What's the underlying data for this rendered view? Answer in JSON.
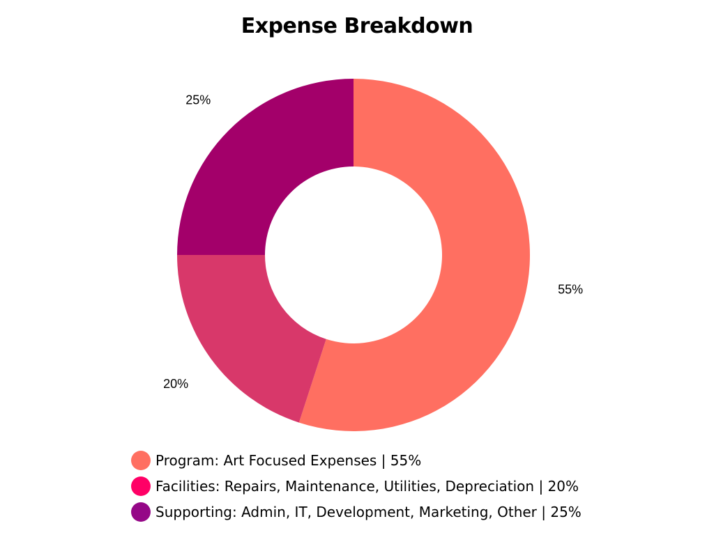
{
  "chart_data": {
    "type": "pie",
    "donut": true,
    "title": "Expense Breakdown",
    "slices": [
      {
        "label": "Program: Art Focused Expenses | 55%",
        "value": 55,
        "value_label": "55%",
        "color": "#FF6F61"
      },
      {
        "label": "Facilities: Repairs, Maintenance, Utilities, Depreciation | 20%",
        "value": 20,
        "value_label": "20%",
        "color": "#D8386A"
      },
      {
        "label": "Supporting: Admin, IT, Development, Marketing, Other | 25%",
        "value": 25,
        "value_label": "25%",
        "color": "#A3006A"
      }
    ],
    "legend": {
      "placement": "bottom",
      "entries": [
        {
          "label": "Program: Art Focused Expenses | 55%",
          "color": "#FF6F61"
        },
        {
          "label": "Facilities: Repairs, Maintenance, Utilities, Depreciation | 20%",
          "color": "#FF0066"
        },
        {
          "label": "Supporting: Admin, IT, Development, Marketing, Other | 25%",
          "color": "#950787"
        }
      ]
    }
  }
}
